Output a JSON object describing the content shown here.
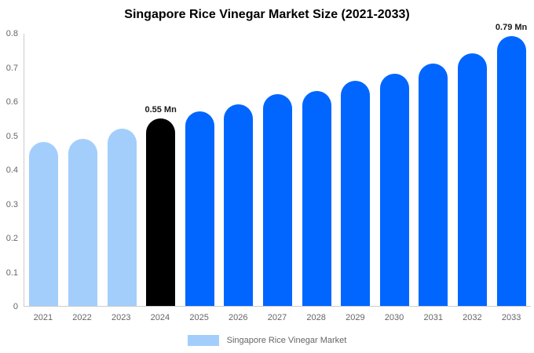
{
  "title": "Singapore Rice Vinegar Market Size (2021-2033)",
  "legend": {
    "label": "Singapore Rice Vinegar Market",
    "swatch_color": "#a3cefc"
  },
  "colors": {
    "historical_bar": "#a3cefc",
    "base_year_bar": "#000000",
    "forecast_bar": "#0066ff",
    "axis_line": "#cccccc",
    "axis_text": "#666666",
    "annotation_text": "#1a1a1a",
    "title_text": "#000000",
    "background": "#ffffff"
  },
  "chart_data": {
    "type": "bar",
    "title": "Singapore Rice Vinegar Market Size (2021-2033)",
    "categories": [
      "2021",
      "2022",
      "2023",
      "2024",
      "2025",
      "2026",
      "2027",
      "2028",
      "2029",
      "2030",
      "2031",
      "2032",
      "2033"
    ],
    "values": [
      0.48,
      0.49,
      0.52,
      0.55,
      0.57,
      0.59,
      0.62,
      0.63,
      0.66,
      0.68,
      0.71,
      0.74,
      0.79
    ],
    "unit": "Mn",
    "xlabel": "",
    "ylabel": "",
    "ylim": [
      0,
      0.8
    ],
    "yticks": [
      "0",
      "0.1",
      "0.2",
      "0.3",
      "0.4",
      "0.5",
      "0.6",
      "0.7",
      "0.8"
    ],
    "grid": false,
    "legend_position": "bottom",
    "legend_entries": [
      "Singapore Rice Vinegar Market"
    ],
    "bar_color_roles": [
      "historical",
      "historical",
      "historical",
      "base_year",
      "forecast",
      "forecast",
      "forecast",
      "forecast",
      "forecast",
      "forecast",
      "forecast",
      "forecast",
      "forecast"
    ],
    "annotations": [
      {
        "category": "2024",
        "text": "0.55 Mn"
      },
      {
        "category": "2033",
        "text": "0.79 Mn"
      }
    ]
  }
}
